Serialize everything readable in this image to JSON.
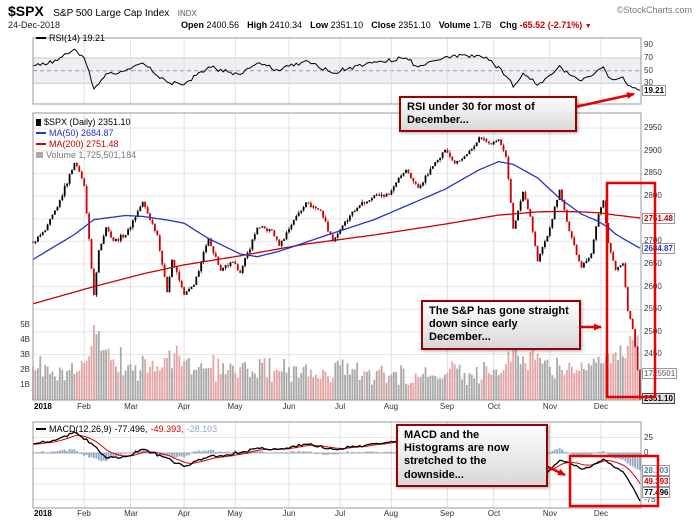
{
  "header": {
    "symbol": "$SPX",
    "name": "S&P 500 Large Cap Index",
    "exchange": "INDX",
    "brand": "©StockCharts.com",
    "date": "24-Dec-2018",
    "quote": {
      "open_label": "Open",
      "open": "2400.56",
      "high_label": "High",
      "high": "2410.34",
      "low_label": "Low",
      "low": "2351.10",
      "close_label": "Close",
      "close": "2351.10",
      "volume_label": "Volume",
      "volume": "1.7B",
      "chg_label": "Chg",
      "chg": "-65.52 (-2.71%)"
    }
  },
  "rsi_panel": {
    "legend": "RSI(14) 19.21",
    "last_label": "19.21"
  },
  "main_panel": {
    "legend_spx": "$SPX (Daily) 2351.10",
    "legend_ma50": "MA(50) 2684.87",
    "legend_ma200": "MA(200) 2751.48",
    "legend_volume": "Volume 1,725,501,184",
    "label_ma200": "2751.48",
    "label_ma50": "2684.87",
    "label_close": "2351.10",
    "label_volume": "1725501"
  },
  "macd_panel": {
    "legend_name": "MACD(12,26,9)",
    "legend_macd": "-77.496,",
    "legend_signal": "-49.393,",
    "legend_hist": "-28.103",
    "label_hist": "28.103",
    "label_signal": "49.393",
    "label_macd": "77.496"
  },
  "annotations": {
    "rsi_note": "RSI under 30 for most of December...",
    "price_note": "The S&P has gone straight down since early December...",
    "macd_note": "MACD and the Histograms are now stretched to the downside..."
  },
  "months": {
    "labels": [
      "2018",
      "Feb",
      "Mar",
      "Apr",
      "May",
      "Jun",
      "Jul",
      "Aug",
      "Sep",
      "Oct",
      "Nov",
      "Dec"
    ],
    "days": [
      0,
      21,
      40,
      62,
      83,
      105,
      126,
      147,
      170,
      189,
      212,
      233
    ],
    "total_days": 250
  },
  "colors": {
    "up": "#000000",
    "down": "#cc0000",
    "ma50": "#2433cc",
    "ma200": "#cc0000",
    "rsi": "#000000",
    "rsi_band": "#eef0f4",
    "macd": "#000000",
    "signal": "#e00000",
    "histogram": "#8fa8c8",
    "volume_up": "#9a9a9a",
    "volume_down": "#e29494",
    "annotation": "#e80000",
    "callout_border": "#990000",
    "axis_text": "#333333"
  },
  "chart_data": [
    {
      "type": "line",
      "name": "RSI(14)",
      "ylim": [
        0,
        100
      ],
      "yticks": [
        90,
        70,
        50,
        30
      ],
      "band": [
        30,
        70
      ],
      "midline": 50,
      "last": 19.21,
      "anchors": {
        "d": [
          0,
          10,
          17,
          21,
          25,
          30,
          38,
          45,
          55,
          62,
          72,
          85,
          92,
          101,
          112,
          123,
          133,
          140,
          153,
          158,
          165,
          169,
          183,
          188,
          196,
          197,
          201,
          207,
          211,
          216,
          220,
          225,
          232,
          234,
          236,
          239,
          242,
          244,
          246,
          248,
          249
        ],
        "v": [
          58,
          66,
          84,
          70,
          21,
          45,
          50,
          62,
          32,
          28,
          56,
          44,
          62,
          50,
          66,
          46,
          58,
          64,
          70,
          56,
          66,
          72,
          74,
          66,
          34,
          24,
          46,
          27,
          40,
          58,
          44,
          34,
          52,
          56,
          40,
          36,
          40,
          27,
          23,
          20,
          19.21
        ]
      }
    },
    {
      "type": "candlestick",
      "name": "$SPX Daily with MA(50), MA(200) and Volume",
      "ylim": [
        2345,
        2968
      ],
      "yticks": [
        2950,
        2900,
        2850,
        2800,
        2750,
        2700,
        2650,
        2600,
        2550,
        2500,
        2450,
        2400
      ],
      "vol_ticks": [
        "5B",
        "4B",
        "3B",
        "2B",
        "1B"
      ],
      "last": {
        "close": 2351.1,
        "ma50": 2684.87,
        "ma200": 2751.48,
        "volume_B": 1.725
      },
      "close_anchors": {
        "d": [
          0,
          5,
          10,
          17,
          19,
          21,
          25,
          27,
          30,
          33,
          38,
          45,
          51,
          55,
          57,
          62,
          66,
          72,
          77,
          82,
          85,
          92,
          98,
          101,
          107,
          112,
          118,
          123,
          126,
          133,
          140,
          146,
          150,
          153,
          158,
          165,
          169,
          173,
          177,
          180,
          183,
          188,
          191,
          194,
          196,
          197,
          199,
          201,
          204,
          207,
          211,
          216,
          220,
          225,
          229,
          232,
          234,
          236,
          239,
          242,
          244,
          246,
          247,
          248,
          249
        ],
        "v": [
          2696,
          2724,
          2776,
          2873,
          2854,
          2822,
          2581,
          2680,
          2731,
          2701,
          2714,
          2787,
          2713,
          2588,
          2659,
          2582,
          2604,
          2706,
          2635,
          2655,
          2630,
          2730,
          2724,
          2690,
          2747,
          2786,
          2767,
          2700,
          2726,
          2774,
          2802,
          2803,
          2840,
          2858,
          2818,
          2875,
          2902,
          2872,
          2888,
          2904,
          2930,
          2914,
          2925,
          2886,
          2785,
          2728,
          2768,
          2809,
          2755,
          2656,
          2712,
          2814,
          2722,
          2642,
          2673,
          2760,
          2790,
          2696,
          2637,
          2651,
          2546,
          2506,
          2467,
          2416,
          2351.1
        ]
      },
      "ma50_anchors": {
        "d": [
          0,
          17,
          25,
          38,
          45,
          55,
          62,
          72,
          85,
          92,
          101,
          112,
          123,
          140,
          153,
          169,
          183,
          191,
          197,
          207,
          211,
          216,
          225,
          232,
          236,
          239,
          244,
          249
        ],
        "v": [
          2660,
          2715,
          2748,
          2757,
          2755,
          2747,
          2740,
          2706,
          2672,
          2666,
          2678,
          2698,
          2718,
          2748,
          2778,
          2815,
          2858,
          2876,
          2870,
          2840,
          2820,
          2795,
          2760,
          2744,
          2730,
          2716,
          2700,
          2684.87
        ]
      },
      "ma200_anchors": {
        "d": [
          0,
          25,
          45,
          62,
          85,
          112,
          140,
          169,
          191,
          207,
          216,
          225,
          232,
          239,
          249
        ],
        "v": [
          2562,
          2600,
          2628,
          2648,
          2668,
          2694,
          2714,
          2738,
          2758,
          2765,
          2766,
          2765,
          2763,
          2758,
          2751.48
        ]
      },
      "volume_anchors_B": {
        "d": [
          0,
          8,
          15,
          22,
          24,
          25,
          26,
          28,
          33,
          40,
          48,
          55,
          62,
          70,
          80,
          90,
          100,
          110,
          120,
          126,
          135,
          147,
          158,
          165,
          170,
          180,
          189,
          194,
          197,
          201,
          207,
          211,
          216,
          221,
          225,
          229,
          232,
          236,
          239,
          242,
          244,
          246,
          247,
          248,
          249
        ],
        "v": [
          2.2,
          1.9,
          2.0,
          2.6,
          3.6,
          5.0,
          4.4,
          3.3,
          2.7,
          2.4,
          2.2,
          2.8,
          2.6,
          2.1,
          2.0,
          1.9,
          2.0,
          1.8,
          1.9,
          2.3,
          1.6,
          1.7,
          1.5,
          1.6,
          1.8,
          1.7,
          2.0,
          2.4,
          3.3,
          2.9,
          3.1,
          2.7,
          2.3,
          2.2,
          2.5,
          2.3,
          2.9,
          3.1,
          3.2,
          2.9,
          3.6,
          4.0,
          4.2,
          4.3,
          1.725
        ]
      }
    },
    {
      "type": "macd",
      "name": "MACD(12,26,9)",
      "ylim": [
        -88,
        50
      ],
      "yticks": [
        25,
        0,
        -25,
        -50,
        -75
      ],
      "last": {
        "macd": -77.496,
        "signal": -49.393,
        "hist": -28.103
      },
      "macd_anchors": {
        "d": [
          0,
          10,
          17,
          25,
          30,
          38,
          45,
          55,
          62,
          72,
          85,
          92,
          101,
          112,
          123,
          133,
          140,
          153,
          165,
          176,
          183,
          191,
          197,
          201,
          207,
          211,
          216,
          221,
          225,
          229,
          232,
          234,
          236,
          239,
          242,
          244,
          246,
          248,
          249
        ],
        "v": [
          14,
          22,
          34,
          12,
          -8,
          -6,
          6,
          -8,
          -22,
          -6,
          0,
          8,
          6,
          14,
          6,
          10,
          15,
          20,
          16,
          12,
          20,
          16,
          -12,
          -22,
          -36,
          -32,
          -12,
          -18,
          -26,
          -22,
          -14,
          -10,
          -16,
          -24,
          -30,
          -42,
          -55,
          -70,
          -77.496
        ]
      }
    }
  ]
}
